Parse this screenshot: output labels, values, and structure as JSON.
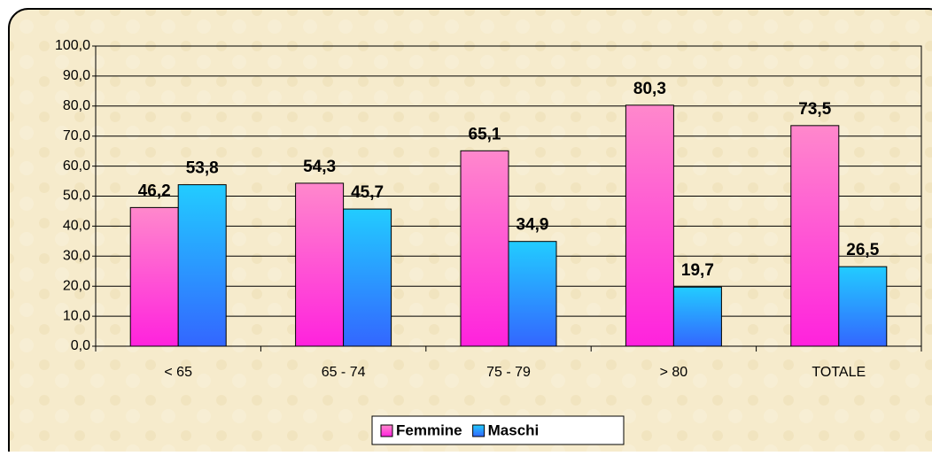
{
  "chart_data": {
    "type": "bar",
    "categories": [
      "< 65",
      "65 - 74",
      "75 - 79",
      "> 80",
      "TOTALE"
    ],
    "series": [
      {
        "name": "Femmine",
        "color": "#ff88cc",
        "values": [
          46.2,
          54.3,
          65.1,
          80.3,
          73.5
        ],
        "value_labels": [
          "46,2",
          "54,3",
          "65,1",
          "80,3",
          "73,5"
        ]
      },
      {
        "name": "Maschi",
        "color": "#22ccff",
        "values": [
          53.8,
          45.7,
          34.9,
          19.7,
          26.5
        ],
        "value_labels": [
          "53,8",
          "45,7",
          "34,9",
          "19,7",
          "26,5"
        ]
      }
    ],
    "ylim": [
      0,
      100
    ],
    "yticks": [
      {
        "value": 0,
        "label": "0,0"
      },
      {
        "value": 10,
        "label": "10,0"
      },
      {
        "value": 20,
        "label": "20,0"
      },
      {
        "value": 30,
        "label": "30,0"
      },
      {
        "value": 40,
        "label": "40,0"
      },
      {
        "value": 50,
        "label": "50,0"
      },
      {
        "value": 60,
        "label": "60,0"
      },
      {
        "value": 70,
        "label": "70,0"
      },
      {
        "value": 80,
        "label": "80,0"
      },
      {
        "value": 90,
        "label": "90,0"
      },
      {
        "value": 100,
        "label": "100,0"
      }
    ],
    "grid": true,
    "legend": "bottom"
  }
}
